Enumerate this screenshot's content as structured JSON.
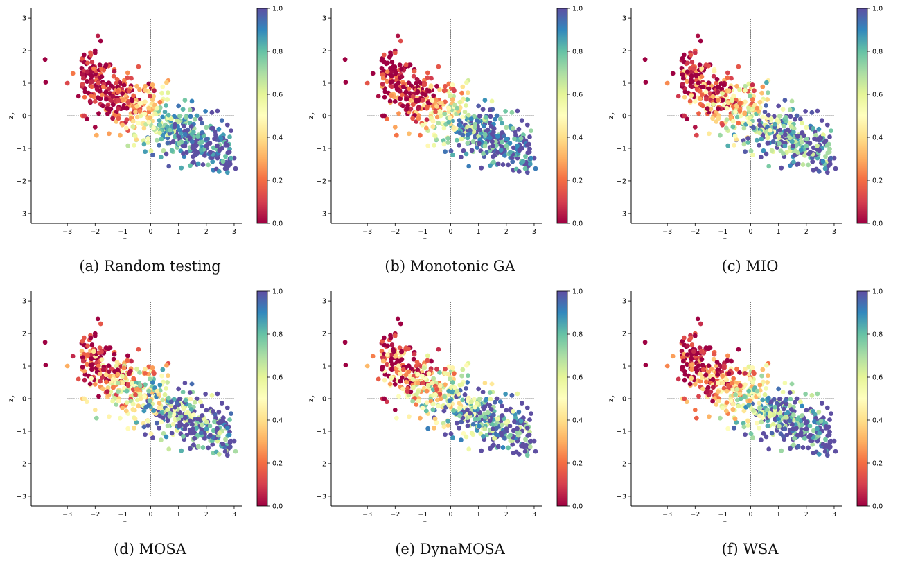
{
  "figure": {
    "panels": [
      {
        "caption": "(a) Random testing",
        "scheme": "random"
      },
      {
        "caption": "(b) Monotonic GA",
        "scheme": "monotonic"
      },
      {
        "caption": "(c) MIO",
        "scheme": "mio"
      },
      {
        "caption": "(d) MOSA",
        "scheme": "mosa"
      },
      {
        "caption": "(e) DynaMOSA",
        "scheme": "dynamosa"
      },
      {
        "caption": "(f) WSA",
        "scheme": "wsa"
      }
    ]
  },
  "chart_data": {
    "type": "scatter",
    "xlabel": "z1",
    "ylabel": "z2",
    "xlim": [
      -4.3,
      3.3
    ],
    "ylim": [
      -3.3,
      3.3
    ],
    "x_ticks": [
      -3,
      -2,
      -1,
      0,
      1,
      2,
      3
    ],
    "y_ticks": [
      -3,
      -2,
      -1,
      0,
      1,
      2,
      3
    ],
    "x_tick_labels": [
      "−3",
      "−2",
      "−1",
      "0",
      "1",
      "2",
      "3"
    ],
    "y_tick_labels": [
      "−3",
      "−2",
      "−1",
      "0",
      "1",
      "2",
      "3"
    ],
    "colorbar": {
      "range": [
        0.0,
        1.0
      ],
      "ticks": [
        0.0,
        0.2,
        0.4,
        0.6,
        0.8,
        1.0
      ],
      "tick_labels": [
        "0.0",
        "0.2",
        "0.4",
        "0.6",
        "0.8",
        "1.0"
      ],
      "colormap": "Spectral"
    },
    "reference_lines": {
      "horizontal": {
        "y": 0,
        "x_from": -3,
        "x_to": 3
      },
      "vertical": {
        "x": 0,
        "y_from": -3,
        "y_to": 3
      },
      "style": "dotted"
    },
    "colormap_stops": [
      "#9e0142",
      "#d53e4f",
      "#f46d43",
      "#fdae61",
      "#fee08b",
      "#ffffbf",
      "#e6f598",
      "#abdda4",
      "#66c2a5",
      "#3288bd",
      "#5e4fa2"
    ],
    "points": [
      [
        -3.8,
        1.73
      ],
      [
        -3.78,
        1.03
      ],
      [
        -2.4,
        1.3
      ],
      [
        -2.2,
        1.8
      ],
      [
        -2.0,
        2.0
      ],
      [
        -1.9,
        2.45
      ],
      [
        -1.8,
        2.3
      ],
      [
        -2.6,
        0.6
      ],
      [
        -2.45,
        0.0
      ],
      [
        -2.3,
        -0.1
      ],
      [
        -2.0,
        -0.35
      ],
      [
        -1.95,
        -0.6
      ],
      [
        -1.5,
        -0.55
      ],
      [
        -1.1,
        -0.6
      ],
      [
        -0.6,
        -0.9
      ],
      [
        -0.2,
        -1.1
      ],
      [
        0.3,
        -0.9
      ],
      [
        0.8,
        -1.1
      ],
      [
        1.2,
        -1.25
      ],
      [
        1.6,
        -1.2
      ],
      [
        2.0,
        -1.0
      ],
      [
        2.4,
        -1.3
      ],
      [
        2.8,
        -1.45
      ],
      [
        3.05,
        -1.62
      ],
      [
        1.1,
        -1.6
      ],
      [
        0.65,
        -1.55
      ],
      [
        1.5,
        -1.45
      ],
      [
        2.2,
        0.1
      ],
      [
        2.4,
        0.15
      ],
      [
        1.5,
        0.2
      ],
      [
        1.0,
        0.3
      ],
      [
        0.6,
        0.5
      ],
      [
        0.4,
        0.7
      ],
      [
        0.1,
        0.6
      ],
      [
        -0.4,
        0.8
      ],
      [
        -0.7,
        1.15
      ],
      [
        -0.6,
        0.3
      ],
      [
        -1.3,
        0.1
      ],
      [
        -0.9,
        -0.2
      ],
      [
        -0.3,
        -0.25
      ],
      [
        0.5,
        -0.4
      ],
      [
        1.3,
        -0.6
      ],
      [
        1.8,
        -0.7
      ],
      [
        2.2,
        -0.4
      ],
      [
        2.6,
        -0.6
      ],
      [
        2.7,
        -0.9
      ],
      [
        3.0,
        -1.3
      ],
      [
        -2.8,
        1.3
      ],
      [
        -3.0,
        1.0
      ]
    ]
  }
}
